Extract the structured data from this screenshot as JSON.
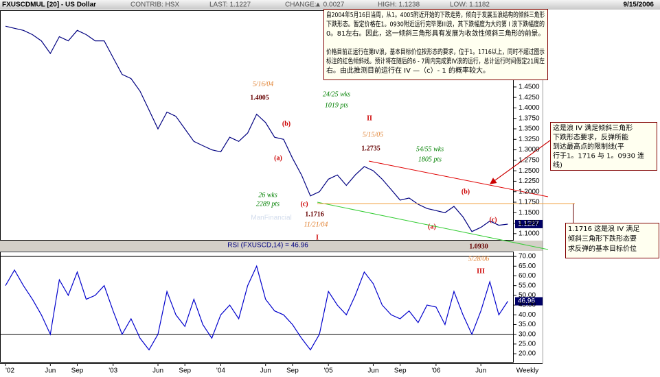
{
  "header": {
    "items": [
      "CONTRIB: HSX",
      "LAST: 1.1227",
      "CHANGE:",
      "▲ 0.0027",
      "HIGH: 1.1238",
      "LOW: 1.1182"
    ],
    "date": "9/15/2006"
  },
  "chart_data": [
    {
      "type": "line",
      "title": "FXUSCDMUL [20] - US Dollar",
      "color": "#000080",
      "watermark": "ManFinancial",
      "current_label": "1.1227",
      "values": [
        1.595,
        1.59,
        1.585,
        1.575,
        1.56,
        1.53,
        1.57,
        1.56,
        1.585,
        1.575,
        1.56,
        1.56,
        1.52,
        1.48,
        1.47,
        1.44,
        1.395,
        1.35,
        1.39,
        1.38,
        1.35,
        1.32,
        1.31,
        1.3,
        1.295,
        1.33,
        1.32,
        1.34,
        1.385,
        1.365,
        1.33,
        1.325,
        1.28,
        1.24,
        1.19,
        1.2,
        1.23,
        1.24,
        1.215,
        1.24,
        1.26,
        1.25,
        1.23,
        1.205,
        1.18,
        1.185,
        1.17,
        1.16,
        1.155,
        1.15,
        1.165,
        1.14,
        1.105,
        1.115,
        1.13,
        1.12,
        1.1227
      ],
      "ylim": [
        1.085,
        1.633
      ],
      "yticks": [
        {
          "value": 1.1,
          "label": "1.1000"
        },
        {
          "value": 1.125,
          "label": "1.1250"
        },
        {
          "value": 1.15,
          "label": "1.1500"
        },
        {
          "value": 1.175,
          "label": "1.1750"
        },
        {
          "value": 1.2,
          "label": "1.2000"
        },
        {
          "value": 1.225,
          "label": "1.2250"
        },
        {
          "value": 1.25,
          "label": "1.2500"
        },
        {
          "value": 1.275,
          "label": "1.2750"
        },
        {
          "value": 1.3,
          "label": "1.3000"
        },
        {
          "value": 1.325,
          "label": "1.3250"
        },
        {
          "value": 1.35,
          "label": "1.3500"
        },
        {
          "value": 1.375,
          "label": "1.3750"
        },
        {
          "value": 1.4,
          "label": "1.4000"
        },
        {
          "value": 1.425,
          "label": "1.4250"
        },
        {
          "value": 1.45,
          "label": "1.4500"
        }
      ],
      "annotations": [
        {
          "text": "5/16/04",
          "color": "#e08030",
          "font": "italic"
        },
        {
          "text": "1.4005",
          "color": "#660000",
          "font": "bold"
        },
        {
          "text": "24/25 wks",
          "color": "#008000",
          "font": "italic"
        },
        {
          "text": "1019 pts",
          "color": "#008000",
          "font": "italic"
        },
        {
          "text": "II",
          "color": "#cc0000",
          "font": "bold"
        },
        {
          "text": "5/15/05",
          "color": "#e08030",
          "font": "italic"
        },
        {
          "text": "1.2735",
          "color": "#660000",
          "font": "bold"
        },
        {
          "text": "54/55 wks",
          "color": "#008000",
          "font": "italic"
        },
        {
          "text": "1805 pts",
          "color": "#008000",
          "font": "italic"
        },
        {
          "text": "(b)",
          "color": "#cc0000",
          "font": "bold"
        },
        {
          "text": "(a)",
          "color": "#cc0000",
          "font": "bold"
        },
        {
          "text": "26 wks",
          "color": "#008000",
          "font": "italic"
        },
        {
          "text": "2289 pts",
          "color": "#008000",
          "font": "italic"
        },
        {
          "text": "(c)",
          "color": "#cc0000",
          "font": "bold"
        },
        {
          "text": "1.1716",
          "color": "#660000",
          "font": "bold"
        },
        {
          "text": "11/21/04",
          "color": "#e08030",
          "font": "italic"
        },
        {
          "text": "I",
          "color": "#cc0000",
          "font": "bold"
        },
        {
          "text": "(b)",
          "color": "#cc0000",
          "font": "bold"
        },
        {
          "text": "(a)",
          "color": "#cc0000",
          "font": "bold"
        },
        {
          "text": "(c)",
          "color": "#cc0000",
          "font": "bold"
        },
        {
          "text": "1.0930",
          "color": "#660000",
          "font": "bold"
        },
        {
          "text": "5/28/06",
          "color": "#e08030",
          "font": "italic"
        },
        {
          "text": "III",
          "color": "#cc0000",
          "font": "bold"
        }
      ],
      "notes": [
        {
          "lines": [
            "自2004年5月16日当周，从1。4005附近开始的下跌走势，倾向于发展五浪结构的倾斜三角形",
            "下跌形态。暂定价格在1。0930附近运行完毕第III浪，其下跌幅度为大约第 I 浪下跌幅度的",
            "0。81左右。因此，这一倾斜三角形具有发展为收敛性倾斜三角形的前景。",
            "价格目前正运行在第IV浪，基本目标价位按形态的要求，位于1。1716以上，同时不超过图示",
            "标注的红色倾斜线。预计将在随后的6 - 7周内完成第IV浪的运行，总计运行时间假定21周左",
            "右。由此推测目前运行在 IV —（c）- 1 的概率较大。"
          ]
        },
        {
          "lines": [
            "这是浪 IV 满足倾斜三角形",
            "下跌形态要求，反弹所能",
            "到达最高点的限制线(平",
            "行于1。1716 与 1。0930 连",
            "线)"
          ]
        },
        {
          "lines": [
            "1.1716 这是浪 IV 满足",
            "倾斜三角形下跌形态要",
            "求反弹的基本目标价位"
          ]
        }
      ]
    },
    {
      "type": "line",
      "title": "RSI (FXUSCD,14) = 46.96",
      "color": "#0000cc",
      "current_label": "46.96",
      "xlabel": "Weekly",
      "categories": [
        "'02",
        null,
        null,
        null,
        null,
        "Jun",
        null,
        null,
        "Sep",
        null,
        null,
        null,
        "'03",
        null,
        null,
        null,
        null,
        "Jun",
        null,
        null,
        "Sep",
        null,
        null,
        null,
        "'04",
        null,
        null,
        null,
        null,
        "Jun",
        null,
        null,
        "Sep",
        null,
        null,
        null,
        "'05",
        null,
        null,
        null,
        null,
        "Jun",
        null,
        null,
        "Sep",
        null,
        null,
        null,
        "'06",
        null,
        null,
        null,
        null,
        "Jun",
        null,
        null,
        null
      ],
      "values": [
        55,
        63,
        55,
        48,
        40,
        30,
        58,
        50,
        62,
        48,
        50,
        55,
        42,
        30,
        38,
        28,
        22,
        30,
        52,
        40,
        34,
        48,
        35,
        28,
        40,
        45,
        38,
        55,
        65,
        48,
        42,
        40,
        35,
        28,
        22,
        30,
        52,
        45,
        40,
        50,
        62,
        56,
        45,
        40,
        38,
        42,
        36,
        45,
        44,
        35,
        52,
        40,
        30,
        42,
        57,
        40,
        46.96
      ],
      "ylim": [
        15.8,
        72.5
      ],
      "yticks": [
        {
          "value": 20,
          "label": "20.00"
        },
        {
          "value": 25,
          "label": "25.00"
        },
        {
          "value": 30,
          "label": "30.00"
        },
        {
          "value": 35,
          "label": "35.00"
        },
        {
          "value": 40,
          "label": "40.00"
        },
        {
          "value": 45,
          "label": "45.00"
        },
        {
          "value": 50,
          "label": "50.00"
        },
        {
          "value": 55,
          "label": "55.00"
        },
        {
          "value": 60,
          "label": "60.00"
        },
        {
          "value": 65,
          "label": "65.00"
        },
        {
          "value": 70,
          "label": "70.00"
        }
      ],
      "hlines": [
        70,
        30
      ]
    }
  ]
}
